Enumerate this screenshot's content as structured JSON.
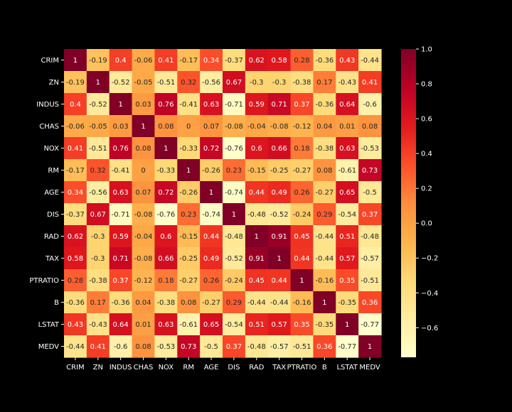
{
  "chart_data": {
    "type": "heatmap",
    "title": "",
    "xlabel": "",
    "ylabel": "",
    "colormap": "YlOrRd",
    "vmin": -0.77,
    "vmax": 1.0,
    "colorbar_ticks": [
      1.0,
      0.8,
      0.6,
      0.4,
      0.2,
      0.0,
      -0.2,
      -0.4,
      -0.6
    ],
    "colorbar_tick_labels": [
      "1.0",
      "0.8",
      "0.6",
      "0.4",
      "0.2",
      "0.0",
      "−0.2",
      "−0.4",
      "−0.6"
    ],
    "labels": [
      "CRIM",
      "ZN",
      "INDUS",
      "CHAS",
      "NOX",
      "RM",
      "AGE",
      "DIS",
      "RAD",
      "TAX",
      "PTRATIO",
      "B",
      "LSTAT",
      "MEDV"
    ],
    "matrix": [
      [
        1,
        -0.19,
        0.4,
        -0.06,
        0.41,
        -0.17,
        0.34,
        -0.37,
        0.62,
        0.58,
        0.28,
        -0.36,
        0.43,
        -0.44
      ],
      [
        -0.19,
        1,
        -0.52,
        -0.05,
        -0.51,
        0.32,
        -0.56,
        0.67,
        -0.3,
        -0.3,
        -0.38,
        0.17,
        -0.43,
        0.41
      ],
      [
        0.4,
        -0.52,
        1,
        0.03,
        0.76,
        -0.41,
        0.63,
        -0.71,
        0.59,
        0.71,
        0.37,
        -0.36,
        0.64,
        -0.6
      ],
      [
        -0.06,
        -0.05,
        0.03,
        1,
        0.08,
        0,
        0.07,
        -0.08,
        -0.04,
        -0.08,
        -0.12,
        0.04,
        0.01,
        0.08
      ],
      [
        0.41,
        -0.51,
        0.76,
        0.08,
        1,
        -0.33,
        0.72,
        -0.76,
        0.6,
        0.66,
        0.18,
        -0.38,
        0.63,
        -0.53
      ],
      [
        -0.17,
        0.32,
        -0.41,
        0,
        -0.33,
        1,
        -0.26,
        0.23,
        -0.15,
        -0.25,
        -0.27,
        0.08,
        -0.61,
        0.73
      ],
      [
        0.34,
        -0.56,
        0.63,
        0.07,
        0.72,
        -0.26,
        1,
        -0.74,
        0.44,
        0.49,
        0.26,
        -0.27,
        0.65,
        -0.5
      ],
      [
        -0.37,
        0.67,
        -0.71,
        -0.08,
        -0.76,
        0.23,
        -0.74,
        1,
        -0.48,
        -0.52,
        -0.24,
        0.29,
        -0.54,
        0.37
      ],
      [
        0.62,
        -0.3,
        0.59,
        -0.04,
        0.6,
        -0.15,
        0.44,
        -0.48,
        1,
        0.91,
        0.45,
        -0.44,
        0.51,
        -0.48
      ],
      [
        0.58,
        -0.3,
        0.71,
        -0.08,
        0.66,
        -0.25,
        0.49,
        -0.52,
        0.91,
        1,
        0.44,
        -0.44,
        0.57,
        -0.57
      ],
      [
        0.28,
        -0.38,
        0.37,
        -0.12,
        0.18,
        -0.27,
        0.26,
        -0.24,
        0.45,
        0.44,
        1,
        -0.16,
        0.35,
        -0.51
      ],
      [
        -0.36,
        0.17,
        -0.36,
        0.04,
        -0.38,
        0.08,
        -0.27,
        0.29,
        -0.44,
        -0.44,
        -0.16,
        1,
        -0.35,
        0.36
      ],
      [
        0.43,
        -0.43,
        0.64,
        0.01,
        0.63,
        -0.61,
        0.65,
        -0.54,
        0.51,
        0.57,
        0.35,
        -0.35,
        1,
        -0.77
      ],
      [
        -0.44,
        0.41,
        -0.6,
        0.08,
        -0.53,
        0.73,
        -0.5,
        0.37,
        -0.48,
        -0.57,
        -0.51,
        0.36,
        -0.77,
        1
      ]
    ]
  }
}
